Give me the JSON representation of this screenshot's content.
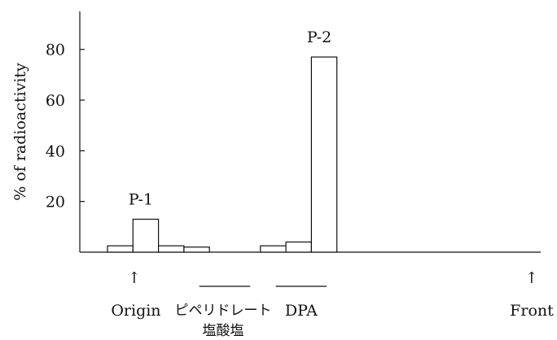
{
  "chart_data": {
    "type": "bar",
    "xlabel": "",
    "ylabel": "% of radioactivity",
    "ylim": [
      0,
      95
    ],
    "yticks": [
      20,
      40,
      60,
      80
    ],
    "bars": [
      {
        "fraction": 1,
        "value": 2.5
      },
      {
        "fraction": 2,
        "value": 13
      },
      {
        "fraction": 3,
        "value": 2.5
      },
      {
        "fraction": 4,
        "value": 2
      },
      {
        "fraction": 7,
        "value": 2.5
      },
      {
        "fraction": 8,
        "value": 4
      },
      {
        "fraction": 9,
        "value": 77
      }
    ],
    "peak_labels": [
      {
        "text": "P-1",
        "fraction": 2,
        "value": 13
      },
      {
        "text": "P-2",
        "fraction": 9,
        "value": 77
      }
    ],
    "markers": {
      "origin": {
        "text": "Origin",
        "arrow": "↑",
        "fraction": 2
      },
      "front": {
        "text": "Front",
        "arrow": "↑",
        "fraction": 17.4
      },
      "piperidolate": {
        "line1": "ピペリドレート",
        "line2": "塩酸塩",
        "from_fraction": 4.6,
        "to_fraction": 6.6
      },
      "dpa": {
        "text": "DPA",
        "from_fraction": 7.6,
        "to_fraction": 9.6
      }
    }
  }
}
